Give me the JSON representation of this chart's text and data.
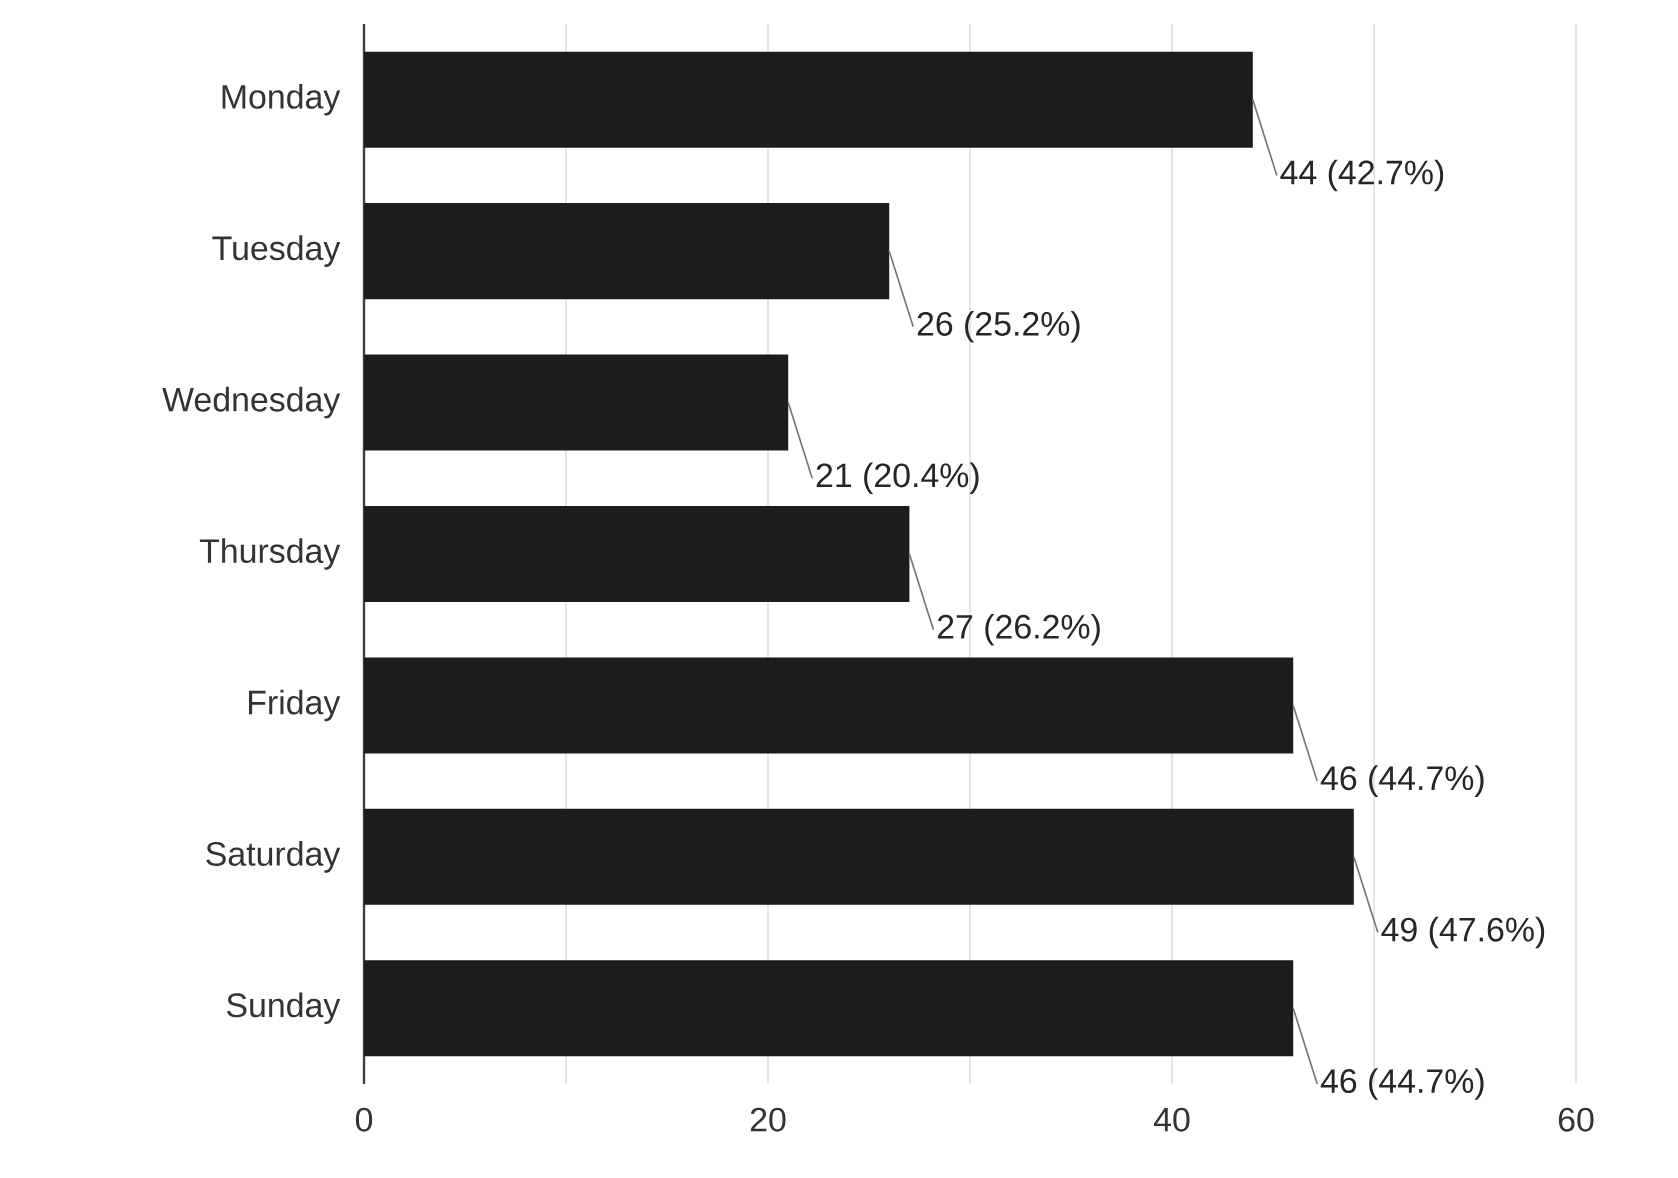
{
  "chart_data": {
    "type": "bar",
    "orientation": "horizontal",
    "categories": [
      "Monday",
      "Tuesday",
      "Wednesday",
      "Thursday",
      "Friday",
      "Saturday",
      "Sunday"
    ],
    "values": [
      44,
      26,
      21,
      27,
      46,
      49,
      46
    ],
    "value_labels": [
      "44 (42.7%)",
      "26 (25.2%)",
      "21 (20.4%)",
      "27 (26.2%)",
      "46 (44.7%)",
      "49 (47.6%)",
      "46 (44.7%)"
    ],
    "color": "#1c1c1c",
    "xlim": [
      0,
      60
    ],
    "xticks": [
      0,
      {
        "value": 10,
        "label": null
      },
      20,
      {
        "value": 30,
        "label": null
      },
      40,
      {
        "value": 50,
        "label": null
      },
      60
    ],
    "grid": "x"
  }
}
